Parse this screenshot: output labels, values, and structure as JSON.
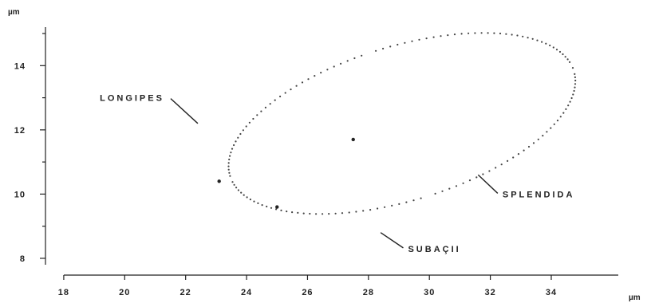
{
  "chart_data": {
    "type": "scatter",
    "title": "",
    "xlabel": "µm",
    "ylabel": "µm",
    "xlim": [
      17.4,
      36.2
    ],
    "ylim": [
      7.8,
      15.2
    ],
    "x_ticks": [
      18,
      20,
      22,
      24,
      26,
      28,
      30,
      32,
      34
    ],
    "y_ticks": [
      8,
      10,
      12,
      14
    ],
    "grid": false,
    "legend": "none",
    "ellipse": {
      "center": [
        29.1,
        12.2
      ],
      "semi_axis_x": 5.9,
      "semi_axis_y": 2.4,
      "rotation_deg": 17
    },
    "points": [
      {
        "x": 27.5,
        "y": 11.7
      },
      {
        "x": 23.1,
        "y": 10.4
      },
      {
        "x": 25.0,
        "y": 9.6
      }
    ],
    "annotations": [
      {
        "text": "LONGIPES",
        "x": 21.3,
        "y": 12.9,
        "pointer": [
          22.4,
          12.2
        ]
      },
      {
        "text": "SPLENDIDA",
        "x": 32.4,
        "y": 9.9,
        "pointer": [
          31.6,
          10.6
        ]
      },
      {
        "text": "SUBAÇII",
        "x": 29.3,
        "y": 8.2,
        "pointer": [
          28.4,
          8.8
        ]
      }
    ]
  }
}
